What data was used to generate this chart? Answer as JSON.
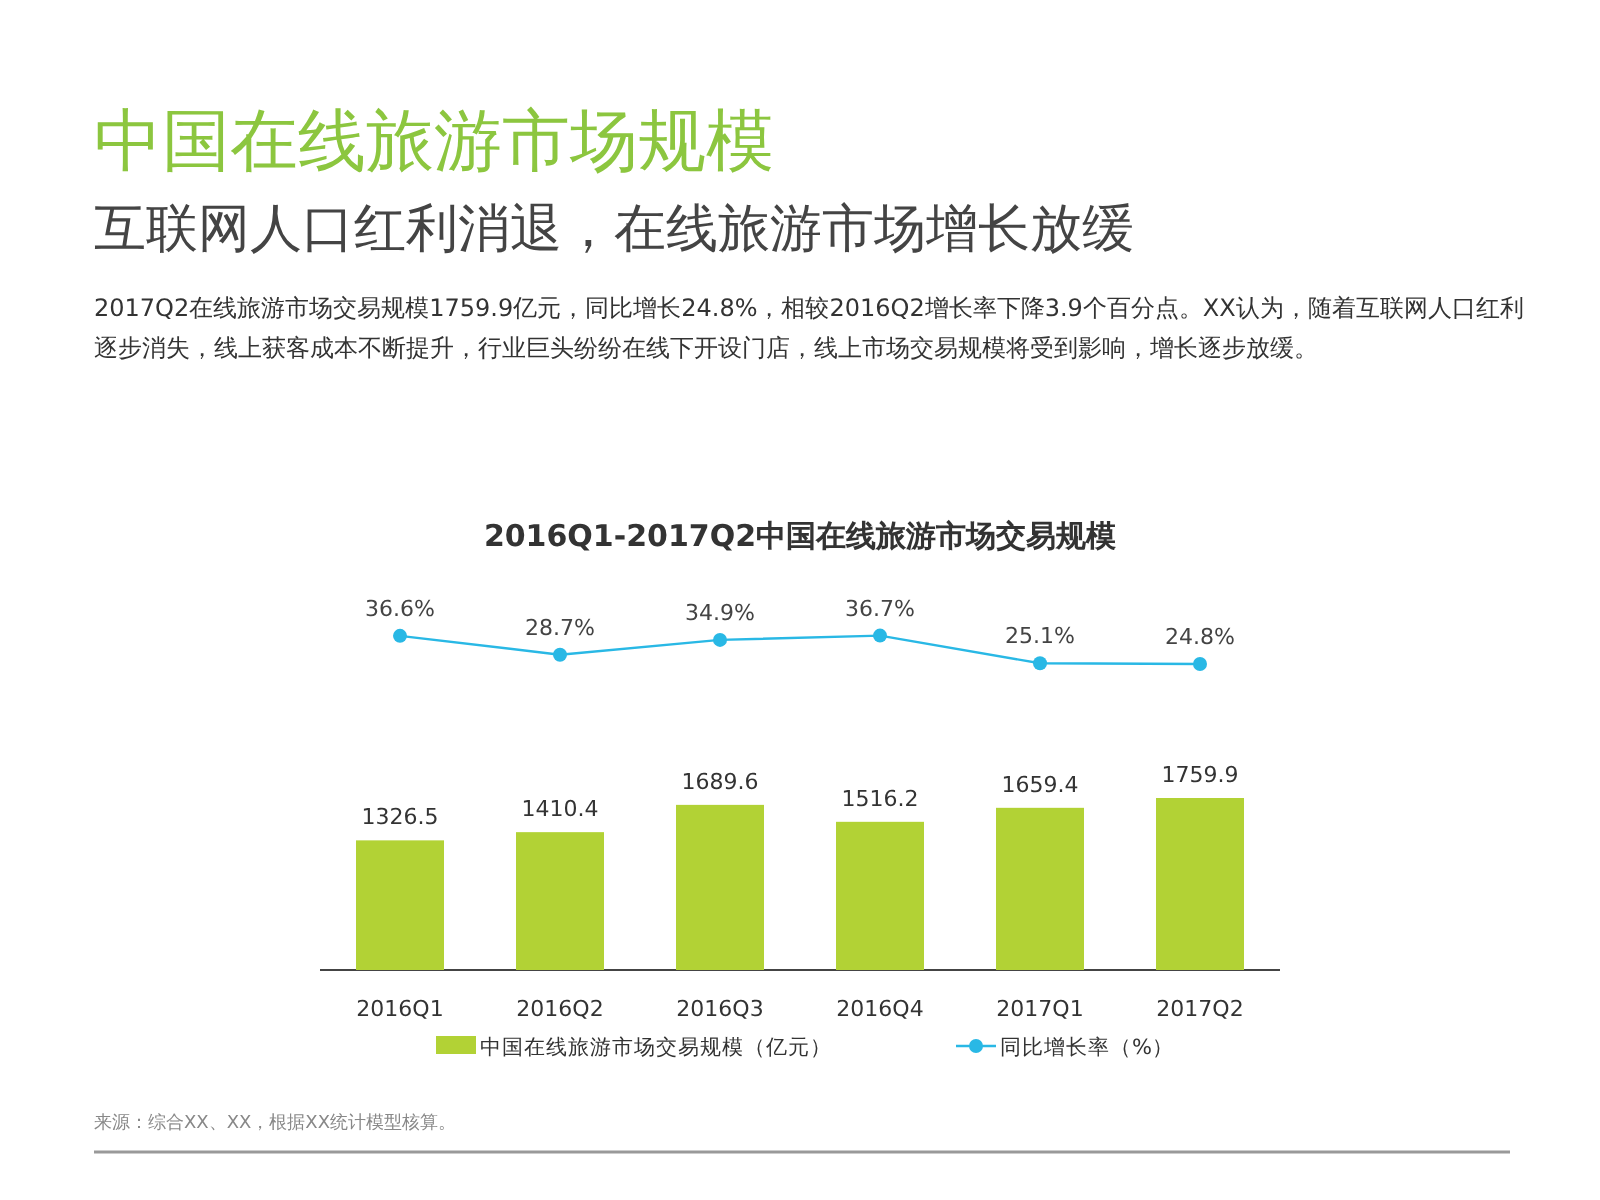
{
  "chart_data": [
    {
      "type": "line",
      "title": "2016Q1-2017Q2中国在线旅游市场交易规模",
      "annotations": [
        "中国在线旅游市场规模",
        "互联网人口红利消退，在线旅游市场增长放缓",
        "2017Q2在线旅游市场交易规模1759.9亿元，同比增长24.8%，相较2016Q2增长率下降3.9个百分点。XX认为，随着互联网人口红利逐步消失，线上获客成本不断提升，行业巨头纷纷在线下开设门店，线上市场交易规模将受到影响，增长逐步放缓。",
        "来源：综合XX、XX，根据XX统计模型核算。"
      ],
      "categories": [
        null,
        null,
        null,
        null,
        null,
        null
      ],
      "series": [
        {
          "name": "同比增长率（%）",
          "color": "#29b8e5",
          "values": [
            36.6,
            28.7,
            34.9,
            36.7,
            25.1,
            24.8
          ],
          "value_labels": [
            "36.6%",
            "28.7%",
            "34.9%",
            "36.7%",
            "25.1%",
            "24.8%"
          ]
        }
      ],
      "marker": "circle",
      "tick_labels": false,
      "legend": "bottom right"
    },
    {
      "type": "bar",
      "categories": [
        "2016Q1",
        "2016Q2",
        "2016Q3",
        "2016Q4",
        "2017Q1",
        "2017Q2"
      ],
      "series": [
        {
          "name": "中国在线旅游市场交易规模（亿元）",
          "color": "#b2d235",
          "values": [
            1326.5,
            1410.4,
            1689.6,
            1516.2,
            1659.4,
            1759.9
          ],
          "value_labels": [
            "1326.5",
            "1410.4",
            "1689.6",
            "1516.2",
            "1659.4",
            "1759.9"
          ]
        }
      ],
      "ylim": [
        0,
        1759.9
      ],
      "tick_labels": "x",
      "legend": "bottom left"
    }
  ]
}
